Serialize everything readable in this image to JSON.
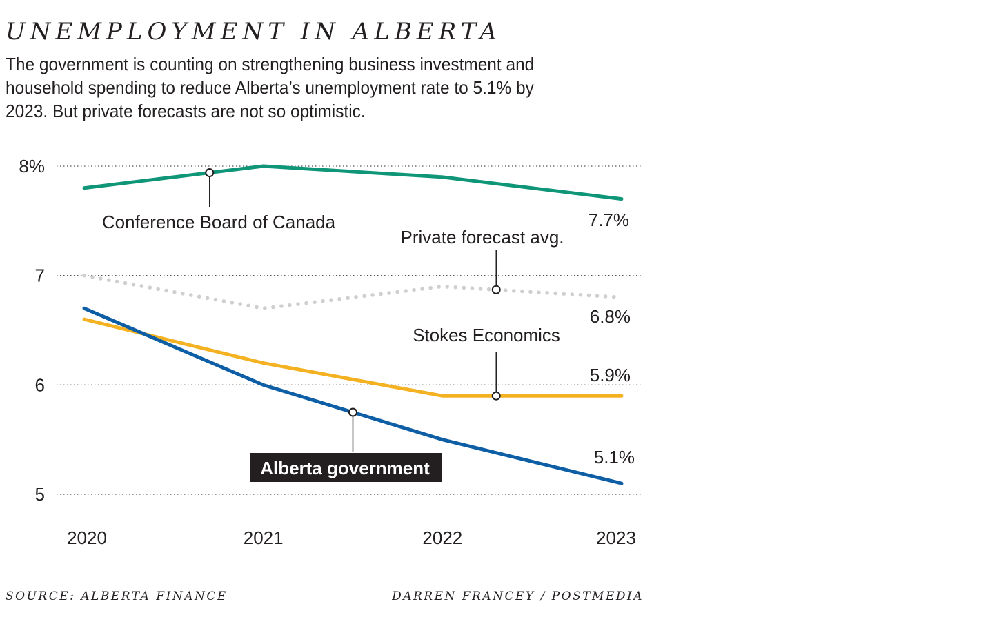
{
  "title": "UNEMPLOYMENT IN ALBERTA",
  "subtitle": "The government is counting on strengthening business investment and household spending to reduce Alberta’s unemployment rate to 5.1% by 2023. But private forecasts are not so optimistic.",
  "source": "SOURCE: ALBERTA FINANCE",
  "credit": "DARREN FRANCEY / POSTMEDIA",
  "chart_data": {
    "type": "line",
    "x": [
      2020,
      2021,
      2022,
      2023
    ],
    "x_tick_labels": [
      "2020",
      "2021",
      "2022",
      "2023"
    ],
    "ylim": [
      5,
      8
    ],
    "y_ticks": [
      8,
      7,
      6,
      5
    ],
    "y_tick_labels": [
      "8%",
      "7",
      "6",
      "5"
    ],
    "grid": "horizontal dotted",
    "series": [
      {
        "name": "Conference Board of Canada",
        "color": "#0f9577",
        "style": "solid",
        "x": [
          2020,
          2021,
          2022,
          2023
        ],
        "values": [
          7.8,
          8.0,
          7.9,
          7.7
        ],
        "end_label": "7.7%",
        "marker_x": 2020.7
      },
      {
        "name": "Private forecast avg.",
        "color": "#cfcfcf",
        "style": "dotted",
        "x": [
          2020,
          2021,
          2022,
          2023
        ],
        "values": [
          7.0,
          6.7,
          6.9,
          6.8
        ],
        "end_label": "6.8%",
        "marker_x": 2022.3
      },
      {
        "name": "Stokes Economics",
        "color": "#f4b223",
        "style": "solid",
        "x": [
          2020,
          2021,
          2022,
          2023
        ],
        "values": [
          6.6,
          6.2,
          5.9,
          5.9
        ],
        "end_label": "5.9%",
        "marker_x": 2022.3
      },
      {
        "name": "Alberta government",
        "color": "#0d5ea5",
        "style": "solid",
        "x": [
          2020,
          2021,
          2022,
          2023
        ],
        "values": [
          6.7,
          6.0,
          5.5,
          5.1
        ],
        "end_label": "5.1%",
        "marker_x": 2021.5,
        "highlight": true
      }
    ]
  }
}
